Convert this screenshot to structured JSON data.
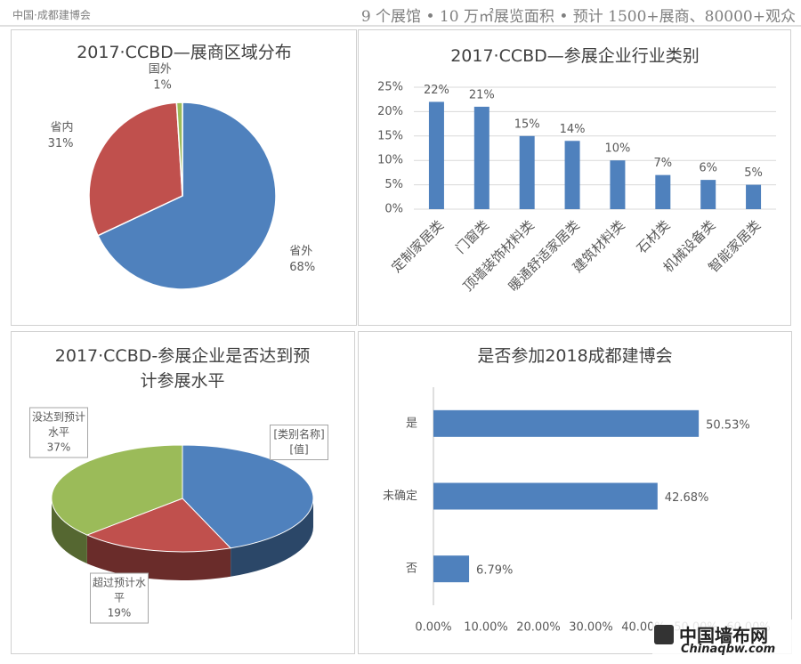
{
  "header": {
    "logo": "中国·成都建博会",
    "tagline": "9 个展馆 • 10 万㎡展览面积 • 预计 1500+展商、80000+观众"
  },
  "watermark": {
    "name": "中国墙布网",
    "url": "Chinaqbw.com"
  },
  "chart_data": [
    {
      "type": "pie",
      "title": "2017·CCBD—展商区域分布",
      "categories": [
        "省外",
        "省内",
        "国外"
      ],
      "values": [
        68,
        31,
        1
      ],
      "value_labels": [
        "68%",
        "31%",
        "1%"
      ],
      "colors": [
        "#4f81bd",
        "#c0504d",
        "#9bbb59"
      ]
    },
    {
      "type": "bar",
      "title": "2017·CCBD—参展企业行业类别",
      "categories": [
        "定制家居类",
        "门窗类",
        "顶墙装饰材料类",
        "暖通舒适家居类",
        "建筑材料类",
        "石材类",
        "机械设备类",
        "智能家居类"
      ],
      "values": [
        22,
        21,
        15,
        14,
        10,
        7,
        6,
        5
      ],
      "value_labels": [
        "22%",
        "21%",
        "15%",
        "14%",
        "10%",
        "7%",
        "6%",
        "5%"
      ],
      "color": "#4f81bd",
      "ylim": [
        0,
        25
      ],
      "yticks": [
        {
          "value": 0,
          "label": "0%"
        },
        {
          "value": 5,
          "label": "5%"
        },
        {
          "value": 10,
          "label": "10%"
        },
        {
          "value": 15,
          "label": "15%"
        },
        {
          "value": 20,
          "label": "20%"
        },
        {
          "value": 25,
          "label": "25%"
        }
      ],
      "grid": true
    },
    {
      "type": "pie3d",
      "title": "2017·CCBD-参展企业是否达到预计参展水平",
      "categories": [
        "[类别名称]",
        "超过预计水平",
        "没达到预计水平"
      ],
      "values": [
        44,
        19,
        37
      ],
      "value_labels": [
        null,
        "19%",
        "37%"
      ],
      "placeholder_value_label": "[值]",
      "colors": [
        "#4f81bd",
        "#c0504d",
        "#9bbb59"
      ]
    },
    {
      "type": "hbar",
      "title": "是否参加2018成都建博会",
      "categories": [
        "是",
        "未确定",
        "否"
      ],
      "values": [
        50.53,
        42.68,
        6.79
      ],
      "value_labels": [
        "50.53%",
        "42.68%",
        "6.79%"
      ],
      "color": "#4f81bd",
      "xlim": [
        0,
        60
      ],
      "xticks": [
        {
          "value": 0,
          "label": "0.00%"
        },
        {
          "value": 10,
          "label": "10.00%"
        },
        {
          "value": 20,
          "label": "20.00%"
        },
        {
          "value": 30,
          "label": "30.00%"
        },
        {
          "value": 40,
          "label": "40.00%"
        },
        {
          "value": 50,
          "label": "50.00%"
        },
        {
          "value": 60,
          "label": "60.00%"
        }
      ],
      "grid": false
    }
  ]
}
